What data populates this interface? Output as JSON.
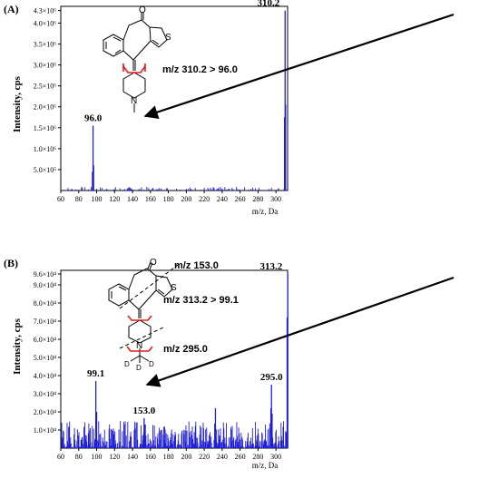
{
  "colors": {
    "spectrum": "#1f1fd6",
    "frame": "#000000",
    "cut": "#e21b1b"
  },
  "chart_data": [
    {
      "type": "bar",
      "panel_label": "(A)",
      "xlabel": "m/z, Da",
      "ylabel": "Intensity, cps",
      "xlim": [
        60,
        313
      ],
      "ylim": [
        0,
        4400000
      ],
      "x_ticks": [
        "60",
        "80",
        "100",
        "120",
        "140",
        "160",
        "180",
        "200",
        "220",
        "240",
        "260",
        "280",
        "300"
      ],
      "y_ticks": [
        {
          "value": 500000,
          "label": "5.0×10⁵"
        },
        {
          "value": 1000000,
          "label": "1.0×10⁶"
        },
        {
          "value": 1500000,
          "label": "1.5×10⁶"
        },
        {
          "value": 2000000,
          "label": "2.0×10⁶"
        },
        {
          "value": 2500000,
          "label": "2.5×10⁶"
        },
        {
          "value": 3000000,
          "label": "3.0×10⁶"
        },
        {
          "value": 3500000,
          "label": "3.5×10⁶"
        },
        {
          "value": 4000000,
          "label": "4.0×10⁶"
        },
        {
          "value": 4300000,
          "label": "4.3×10⁶"
        }
      ],
      "peaks": [
        {
          "x": 95.3,
          "y": 450000
        },
        {
          "x": 96.0,
          "y": 1550000,
          "label": "96.0"
        },
        {
          "x": 96.6,
          "y": 600000
        },
        {
          "x": 309.6,
          "y": 1750000
        },
        {
          "x": 310.2,
          "y": 4300000,
          "label": "310.2"
        },
        {
          "x": 310.7,
          "y": 2050000
        }
      ],
      "transition_label": "m/z 310.2 > 96.0",
      "noise": {
        "level": 90000,
        "seed": 7
      }
    },
    {
      "type": "bar",
      "panel_label": "(B)",
      "xlabel": "m/z, Da",
      "ylabel": "Intensity, cps",
      "xlim": [
        60,
        313
      ],
      "ylim": [
        0,
        98000
      ],
      "x_ticks": [
        "60",
        "80",
        "100",
        "120",
        "140",
        "160",
        "180",
        "200",
        "220",
        "240",
        "260",
        "280",
        "300"
      ],
      "y_ticks": [
        {
          "value": 10000,
          "label": "1.0×10⁴"
        },
        {
          "value": 20000,
          "label": "2.0×10⁴"
        },
        {
          "value": 30000,
          "label": "3.0×10⁴"
        },
        {
          "value": 40000,
          "label": "4.0×10⁴"
        },
        {
          "value": 50000,
          "label": "5.0×10⁴"
        },
        {
          "value": 60000,
          "label": "6.0×10⁴"
        },
        {
          "value": 70000,
          "label": "7.0×10⁴"
        },
        {
          "value": 80000,
          "label": "8.0×10⁴"
        },
        {
          "value": 90000,
          "label": "9.0×10⁴"
        },
        {
          "value": 96000,
          "label": "9.6×10⁴"
        }
      ],
      "peaks": [
        {
          "x": 99.1,
          "y": 37000,
          "label": "99.1"
        },
        {
          "x": 100.0,
          "y": 20000
        },
        {
          "x": 153.0,
          "y": 16500,
          "label": "153.0"
        },
        {
          "x": 154.2,
          "y": 13000
        },
        {
          "x": 232.5,
          "y": 22000
        },
        {
          "x": 294.4,
          "y": 22000
        },
        {
          "x": 295.0,
          "y": 35000,
          "label": "295.0"
        },
        {
          "x": 295.7,
          "y": 19000
        },
        {
          "x": 312.5,
          "y": 72000
        },
        {
          "x": 313.2,
          "y": 96000,
          "label": "313.2"
        }
      ],
      "transition_labels": [
        "m/z 153.0",
        "m/z 313.2 > 99.1",
        "m/z 295.0"
      ],
      "atoms": {
        "carbonyl": "O",
        "thiophene": "S",
        "nitrogen": "N",
        "deuterium": "D"
      },
      "noise": {
        "level": 15000,
        "seed": 19
      }
    }
  ]
}
